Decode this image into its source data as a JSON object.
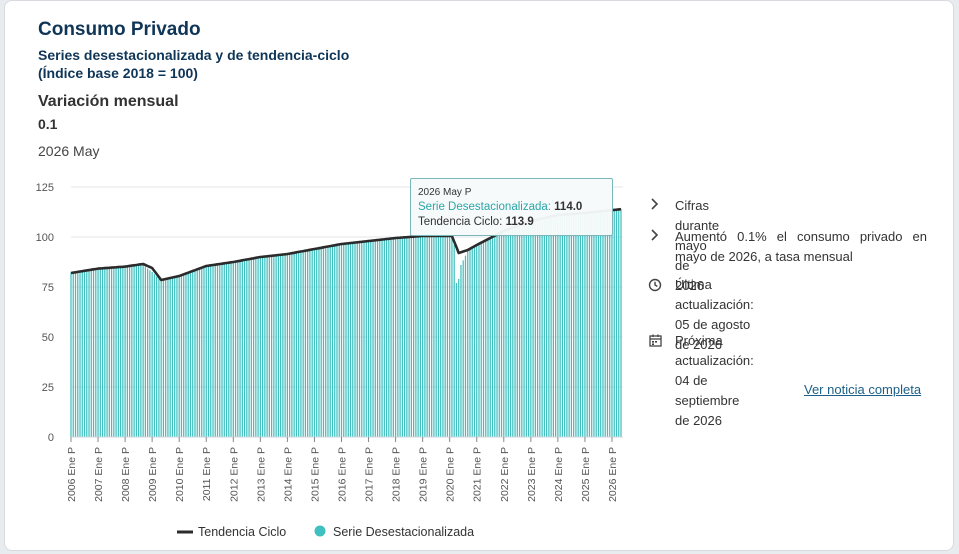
{
  "header": {
    "title": "Consumo Privado",
    "subtitle_line1": "Series desestacionalizada y de tendencia-ciclo",
    "subtitle_line2": "(Índice base 2018 = 100)",
    "variation_label": "Variación mensual",
    "variation_value": "0.1",
    "period": "2026 May"
  },
  "tooltip": {
    "date": "2026 May P",
    "series_label": "Serie Desestacionalizada:",
    "series_value": "114.0",
    "trend_label": "Tendencia Ciclo:",
    "trend_value": "113.9"
  },
  "side": {
    "item1": "Cifras durante mayo de 2026",
    "item2": "Aumentó 0.1% el consumo privado en mayo de 2026, a tasa mensual",
    "item3_label": "Última actualización:",
    "item3_value": "05 de agosto de 2026",
    "item4_label": "Próxima actualización:",
    "item4_value": "04 de septiembre de 2026",
    "link": "Ver noticia completa",
    "icons": [
      "chevron-right-icon",
      "chevron-right-icon",
      "clock-icon",
      "calendar-icon"
    ]
  },
  "colors": {
    "bars": "#3fbfbf",
    "trend": "#2b2b2b",
    "title": "#0f3557",
    "link": "#1b5f86"
  },
  "chart_data": {
    "type": "bar",
    "ylim": [
      0,
      125
    ],
    "yticks": [
      0,
      25,
      50,
      75,
      100,
      125
    ],
    "xlabels": [
      "2006 Ene P",
      "2007 Ene P",
      "2008 Ene P",
      "2009 Ene P",
      "2010 Ene P",
      "2011 Ene P",
      "2012 Ene P",
      "2013 Ene P",
      "2014 Ene P",
      "2015 Ene P",
      "2016 Ene P",
      "2017 Ene P",
      "2018 Ene P",
      "2019 Ene P",
      "2020 Ene P",
      "2021 Ene P",
      "2022 Ene P",
      "2023 Ene P",
      "2024 Ene P",
      "2025 Ene P",
      "2026 Ene P"
    ],
    "grid": true,
    "legend": [
      "Tendencia Ciclo",
      "Serie Desestacionalizada"
    ],
    "legend_position": "bottom",
    "series": [
      {
        "name": "Serie Desestacionalizada",
        "type": "bar",
        "anchors": [
          [
            "2006-01",
            82.3
          ],
          [
            "2007-01",
            84.0
          ],
          [
            "2008-01",
            85.0
          ],
          [
            "2008-09",
            86.0
          ],
          [
            "2009-01",
            82.5
          ],
          [
            "2009-05",
            78.0
          ],
          [
            "2010-01",
            80.5
          ],
          [
            "2011-01",
            85.0
          ],
          [
            "2012-01",
            87.5
          ],
          [
            "2013-01",
            89.5
          ],
          [
            "2014-01",
            91.0
          ],
          [
            "2015-01",
            93.5
          ],
          [
            "2016-01",
            96.0
          ],
          [
            "2017-01",
            97.5
          ],
          [
            "2018-01",
            99.5
          ],
          [
            "2019-01",
            100.5
          ],
          [
            "2020-02",
            100.8
          ],
          [
            "2020-03",
            96.0
          ],
          [
            "2020-04",
            77.0
          ],
          [
            "2020-05",
            79.0
          ],
          [
            "2020-06",
            86.0
          ],
          [
            "2020-09",
            93.0
          ],
          [
            "2021-01",
            96.5
          ],
          [
            "2022-01",
            103.0
          ],
          [
            "2023-01",
            107.5
          ],
          [
            "2024-01",
            111.0
          ],
          [
            "2025-01",
            112.0
          ],
          [
            "2026-05",
            114.0
          ]
        ]
      },
      {
        "name": "Tendencia Ciclo",
        "type": "line",
        "anchors": [
          [
            "2006-01",
            82.0
          ],
          [
            "2007-01",
            84.2
          ],
          [
            "2008-01",
            85.2
          ],
          [
            "2008-09",
            86.5
          ],
          [
            "2009-01",
            84.5
          ],
          [
            "2009-05",
            78.5
          ],
          [
            "2010-01",
            80.5
          ],
          [
            "2011-01",
            85.5
          ],
          [
            "2012-01",
            87.5
          ],
          [
            "2013-01",
            90.0
          ],
          [
            "2014-01",
            91.5
          ],
          [
            "2015-01",
            94.0
          ],
          [
            "2016-01",
            96.5
          ],
          [
            "2017-01",
            98.0
          ],
          [
            "2018-01",
            99.5
          ],
          [
            "2019-01",
            100.5
          ],
          [
            "2020-02",
            100.5
          ],
          [
            "2020-05",
            92.0
          ],
          [
            "2020-09",
            93.5
          ],
          [
            "2021-01",
            96.0
          ],
          [
            "2022-01",
            103.0
          ],
          [
            "2023-01",
            108.0
          ],
          [
            "2024-01",
            111.0
          ],
          [
            "2025-01",
            112.0
          ],
          [
            "2026-05",
            113.9
          ]
        ]
      }
    ]
  }
}
